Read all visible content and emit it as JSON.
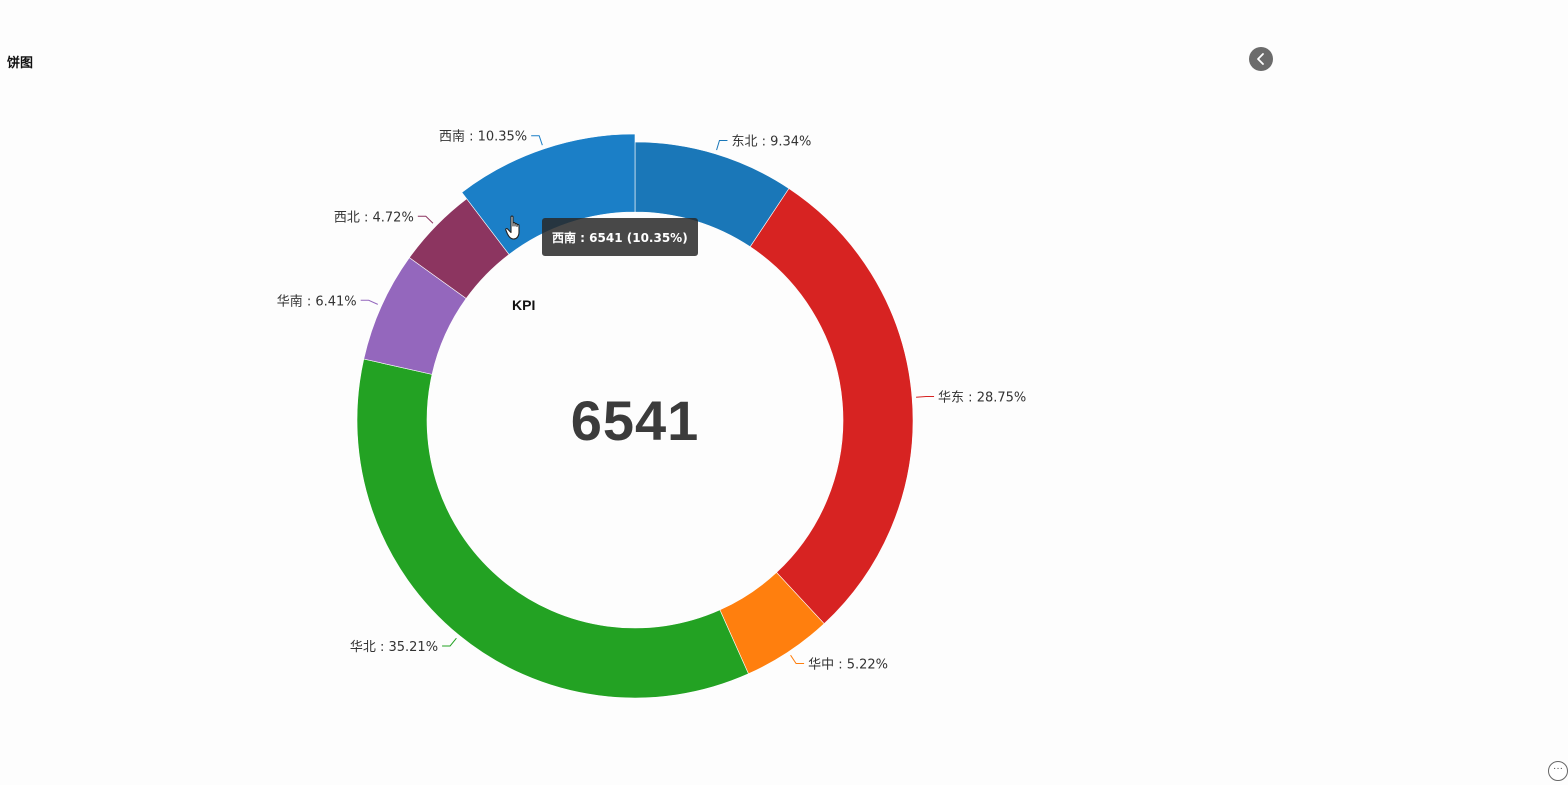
{
  "panel": {
    "title": "饼图"
  },
  "icons": {
    "collapse": "chevron-left-icon",
    "more": "more-options-icon",
    "cursor": "hand-pointer-icon"
  },
  "kpi": {
    "label": "KPI",
    "value": "6541"
  },
  "tooltip": {
    "text": "西南 : 6541 (10.35%)"
  },
  "chart_data": {
    "type": "pie",
    "donut": true,
    "title": "",
    "highlighted": "西南",
    "slices": [
      {
        "name": "东北",
        "percent": 9.34,
        "label": "东北 : 9.34%",
        "color": "#1a77b8"
      },
      {
        "name": "华东",
        "percent": 28.75,
        "label": "华东 : 28.75%",
        "color": "#d72322"
      },
      {
        "name": "华中",
        "percent": 5.22,
        "label": "华中 : 5.22%",
        "color": "#ff7f0e"
      },
      {
        "name": "华北",
        "percent": 35.21,
        "label": "华北 : 35.21%",
        "color": "#23a223"
      },
      {
        "name": "华南",
        "percent": 6.41,
        "label": "华南 : 6.41%",
        "color": "#9467bd"
      },
      {
        "name": "西北",
        "percent": 4.72,
        "label": "西北 : 4.72%",
        "color": "#8c3560"
      },
      {
        "name": "西南",
        "percent": 10.35,
        "label": "西南 : 10.35%",
        "color": "#1b7fc7",
        "value": 6541
      }
    ]
  }
}
